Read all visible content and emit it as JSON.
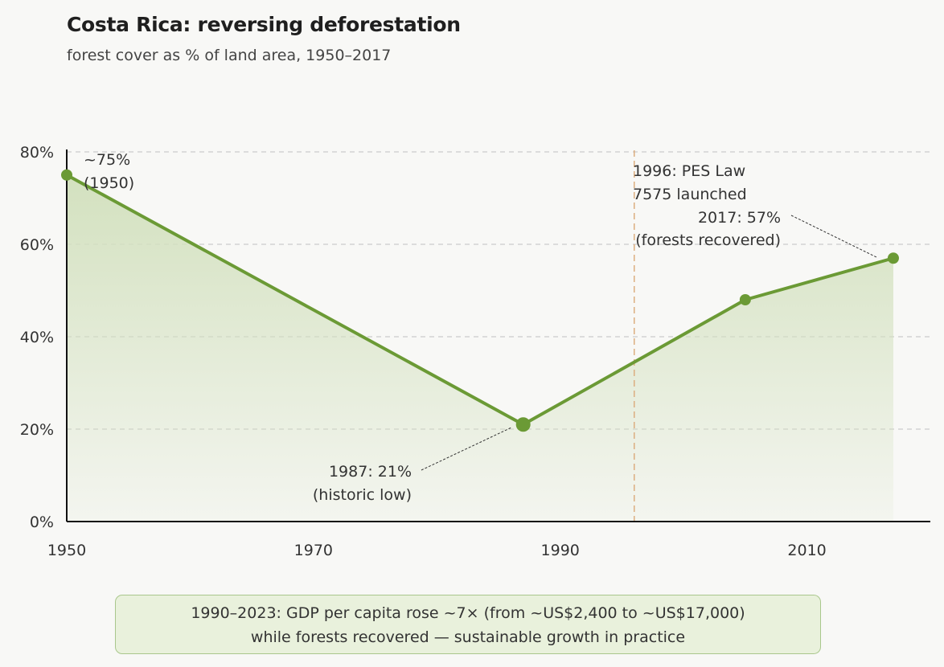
{
  "chart_data": {
    "type": "area",
    "title": "Costa Rica: reversing deforestation",
    "subtitle": "forest cover as % of land area, 1950–2017",
    "xlabel": "",
    "ylabel": "",
    "x": [
      1950,
      1987,
      2005,
      2017
    ],
    "values": [
      75,
      21,
      48,
      57
    ],
    "xlim": [
      1950,
      2020
    ],
    "ylim": [
      0,
      80
    ],
    "x_ticks": [
      1950,
      1970,
      1990,
      2010
    ],
    "x_tick_labels": [
      "1950",
      "1970",
      "1990",
      "2010"
    ],
    "y_ticks": [
      0,
      20,
      40,
      60,
      80
    ],
    "y_tick_labels": [
      "0%",
      "20%",
      "40%",
      "60%",
      "80%"
    ],
    "grid": "horizontal dashed",
    "colors": {
      "line": "#6b9a35",
      "fill": "#d3e1bf",
      "event_line": "#dcae80",
      "grid": "#cccccc"
    },
    "event": {
      "x": 1996,
      "label_lines": [
        "1996: PES Law",
        "7575 launched"
      ]
    },
    "annotations": [
      {
        "x": 1950,
        "y": 75,
        "lines": [
          "~75%",
          "(1950)"
        ]
      },
      {
        "x": 1987,
        "y": 21,
        "lines": [
          "1987: 21%",
          "(historic low)"
        ]
      },
      {
        "x": 2017,
        "y": 57,
        "lines": [
          "2017: 57%",
          "(forests recovered)"
        ]
      }
    ]
  },
  "callout": {
    "line1": "1990–2023: GDP per capita rose ~7× (from ~US$2,400 to ~US$17,000)",
    "line2": "while forests recovered — sustainable growth in practice"
  }
}
